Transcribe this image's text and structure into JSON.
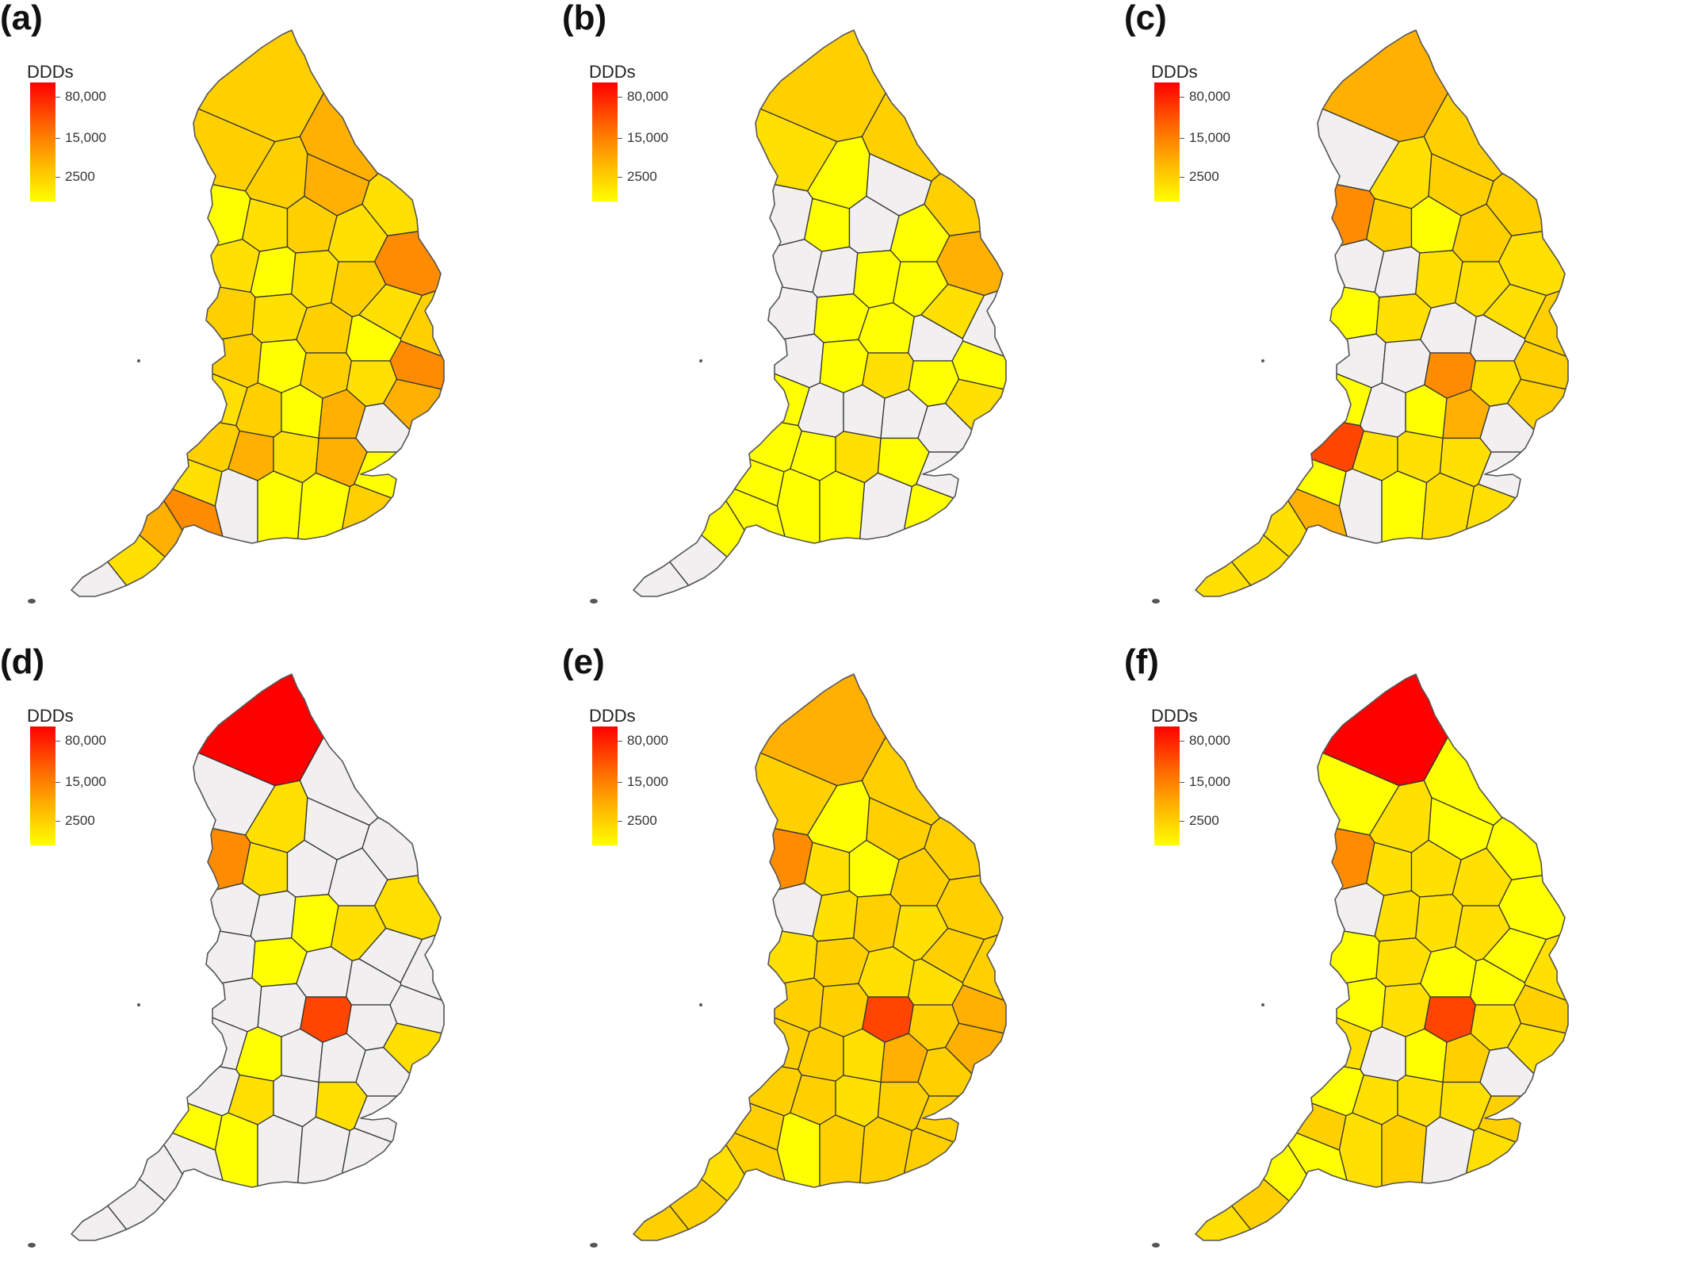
{
  "panels": [
    {
      "label": "(a)",
      "legend_title": "DDDs",
      "legend_ticks": [
        "80,000",
        "15,000",
        "2500"
      ],
      "levels": [
        3,
        4,
        2,
        4,
        3,
        3,
        1,
        2,
        3,
        2,
        5,
        2,
        1,
        2,
        3,
        2,
        3,
        3,
        2,
        3,
        1,
        5,
        3,
        1,
        3,
        2,
        4,
        2,
        3,
        1,
        4,
        0,
        3,
        4,
        2,
        4,
        1,
        2,
        0,
        1,
        1,
        3,
        4,
        5,
        2,
        0
      ]
    },
    {
      "label": "(b)",
      "legend_title": "DDDs",
      "legend_ticks": [
        "80,000",
        "15,000",
        "2500"
      ],
      "levels": [
        3,
        3,
        3,
        0,
        1,
        2,
        0,
        1,
        0,
        1,
        4,
        0,
        0,
        1,
        1,
        2,
        0,
        0,
        1,
        1,
        0,
        1,
        0,
        1,
        2,
        1,
        2,
        1,
        0,
        0,
        0,
        0,
        1,
        1,
        2,
        1,
        0,
        1,
        1,
        1,
        0,
        1,
        1,
        1,
        0,
        0
      ]
    },
    {
      "label": "(c)",
      "legend_title": "DDDs",
      "legend_ticks": [
        "80,000",
        "15,000",
        "2500"
      ],
      "levels": [
        4,
        3,
        3,
        3,
        2,
        0,
        5,
        3,
        1,
        3,
        2,
        0,
        0,
        2,
        2,
        2,
        3,
        1,
        2,
        0,
        0,
        3,
        0,
        0,
        5,
        2,
        3,
        1,
        0,
        1,
        4,
        0,
        6,
        2,
        2,
        2,
        0,
        1,
        0,
        1,
        2,
        2,
        2,
        4,
        2,
        2
      ]
    },
    {
      "label": "(d)",
      "legend_title": "DDDs",
      "legend_ticks": [
        "80,000",
        "15,000",
        "2500"
      ],
      "levels": [
        7,
        0,
        0,
        0,
        2,
        0,
        5,
        2,
        0,
        0,
        2,
        0,
        0,
        1,
        2,
        0,
        0,
        0,
        1,
        0,
        0,
        0,
        0,
        0,
        6,
        0,
        2,
        0,
        1,
        0,
        0,
        0,
        0,
        2,
        0,
        2,
        0,
        1,
        1,
        0,
        0,
        0,
        0,
        0,
        0,
        0
      ]
    },
    {
      "label": "(e)",
      "legend_title": "DDDs",
      "legend_ticks": [
        "80,000",
        "15,000",
        "2500"
      ],
      "levels": [
        4,
        3,
        3,
        3,
        1,
        3,
        5,
        2,
        1,
        3,
        3,
        0,
        2,
        3,
        2,
        3,
        3,
        2,
        3,
        2,
        2,
        4,
        3,
        3,
        6,
        3,
        4,
        3,
        3,
        2,
        4,
        3,
        3,
        3,
        2,
        3,
        3,
        3,
        1,
        3,
        3,
        3,
        2,
        3,
        3,
        3
      ]
    },
    {
      "label": "(f)",
      "legend_title": "DDDs",
      "legend_ticks": [
        "80,000",
        "15,000",
        "2500"
      ],
      "levels": [
        7,
        1,
        1,
        1,
        2,
        1,
        5,
        2,
        2,
        2,
        1,
        0,
        2,
        2,
        2,
        1,
        2,
        1,
        2,
        1,
        1,
        3,
        1,
        2,
        6,
        2,
        2,
        2,
        0,
        1,
        3,
        0,
        1,
        2,
        2,
        2,
        3,
        3,
        2,
        3,
        0,
        2,
        1,
        1,
        3,
        2
      ]
    }
  ],
  "colors": {
    "no_data": "#f1eff0",
    "scale": [
      "#f1eff0",
      "#ffff00",
      "#ffe000",
      "#ffd000",
      "#ffb000",
      "#ff8c00",
      "#ff4500",
      "#ff0000"
    ]
  }
}
